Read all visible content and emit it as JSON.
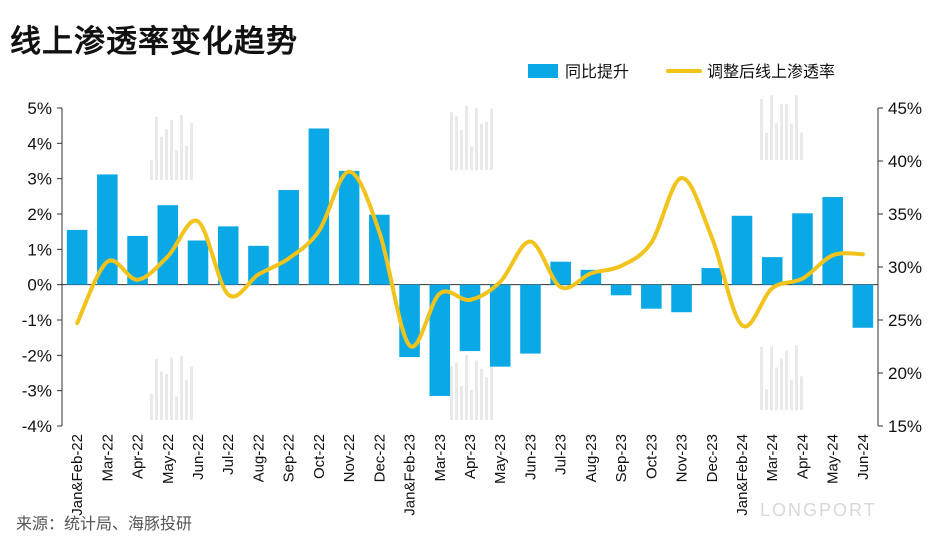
{
  "title": "线上渗透率变化趋势",
  "source": "来源：统计局、海豚投研",
  "watermark": "LONGPORT",
  "colors": {
    "bar": "#0aa9e6",
    "line": "#f2c31a"
  },
  "chart_data": {
    "type": "bar+line",
    "categories": [
      "Jan&Feb-22",
      "Mar-22",
      "Apr-22",
      "May-22",
      "Jun-22",
      "Jul-22",
      "Aug-22",
      "Sep-22",
      "Oct-22",
      "Nov-22",
      "Dec-22",
      "Jan&Feb-23",
      "Mar-23",
      "Apr-23",
      "May-23",
      "Jun-23",
      "Jul-23",
      "Aug-23",
      "Sep-23",
      "Oct-23",
      "Nov-23",
      "Dec-23",
      "Jan&Feb-24",
      "Mar-24",
      "Apr-24",
      "May-24",
      "Jun-24"
    ],
    "series": [
      {
        "name": "同比提升",
        "type": "bar",
        "axis": "left",
        "values": [
          1.55,
          3.12,
          1.38,
          2.25,
          1.25,
          1.65,
          1.1,
          2.68,
          4.42,
          3.22,
          1.98,
          -2.05,
          -3.15,
          -1.88,
          -2.32,
          -1.95,
          0.65,
          0.42,
          -0.3,
          -0.68,
          -0.78,
          0.47,
          1.95,
          0.78,
          2.02,
          2.48,
          -1.22
        ]
      },
      {
        "name": "调整后线上渗透率",
        "type": "line",
        "axis": "right",
        "values": [
          24.7,
          30.5,
          28.8,
          31.0,
          34.3,
          27.4,
          29.3,
          30.8,
          33.4,
          39.0,
          33.3,
          22.6,
          27.5,
          26.9,
          28.6,
          32.4,
          28.1,
          29.4,
          30.1,
          32.3,
          38.4,
          32.8,
          24.5,
          28.0,
          28.9,
          31.1,
          31.2
        ]
      }
    ],
    "y_left": {
      "min": -4,
      "max": 5,
      "ticks": [
        "-4%",
        "-3%",
        "-2%",
        "-1%",
        "0%",
        "1%",
        "2%",
        "3%",
        "4%",
        "5%"
      ]
    },
    "y_right": {
      "min": 15,
      "max": 45,
      "ticks": [
        "15%",
        "20%",
        "25%",
        "30%",
        "35%",
        "40%",
        "45%"
      ]
    },
    "grid": false,
    "legend_position": "top-right"
  }
}
